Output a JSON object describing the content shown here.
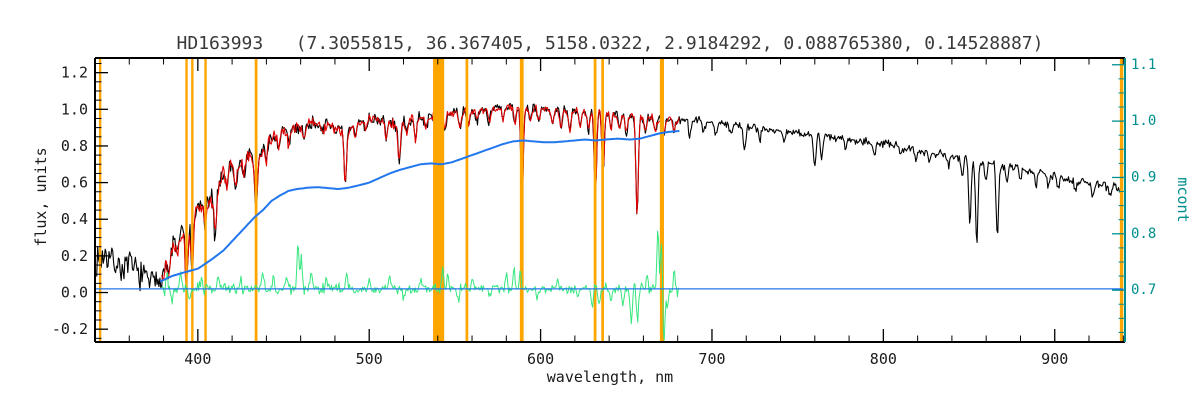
{
  "chart_data": {
    "type": "line",
    "title": "HD163993   (7.3055815, 36.367405, 5158.0322, 2.9184292, 0.088765380, 0.14528887)",
    "xlabel": "wavelength, nm",
    "ylabel_left": "flux, units",
    "ylabel_right": "mcont",
    "xlim": [
      340,
      941
    ],
    "ylim_left": [
      -0.27,
      1.28
    ],
    "ylim_right": [
      0.608,
      1.112
    ],
    "x_ticks": [
      400,
      500,
      600,
      700,
      800,
      900
    ],
    "x_minor_step": 20,
    "y_ticks_left": [
      -0.2,
      0.0,
      0.2,
      0.4,
      0.6,
      0.8,
      1.0,
      1.2
    ],
    "y_minor_step_left": 0.05,
    "y_ticks_right": [
      0.7,
      0.8,
      0.9,
      1.0,
      1.1
    ],
    "y_minor_step_right": 0.025,
    "grid": false,
    "legend": "none",
    "colors": {
      "axis": "#000000",
      "observed": "#000000",
      "fit": "#e10000",
      "residual": "#35e67d",
      "continuum": "#2277ee",
      "marker": "#ffa500",
      "right_axis": "#008e8e",
      "title_text": "#3a3a3a",
      "tick_text": "#1a1a1a"
    },
    "orange_marker_lines": [
      [
        343,
        1.4
      ],
      [
        393.4,
        1.4
      ],
      [
        396.8,
        1.4
      ],
      [
        404.5,
        1.4
      ],
      [
        434.0,
        1.6
      ],
      [
        540.5,
        6.5
      ],
      [
        557.0,
        1.6
      ],
      [
        589.0,
        2.2
      ],
      [
        631.8,
        1.6
      ],
      [
        636.2,
        1.6
      ],
      [
        670.8,
        2.4
      ],
      [
        939.0,
        2.0
      ]
    ],
    "observed_anchors": [
      [
        341,
        0.18
      ],
      [
        346,
        0.21
      ],
      [
        351,
        0.17
      ],
      [
        356,
        0.13
      ],
      [
        361,
        0.15
      ],
      [
        366,
        0.1
      ],
      [
        371,
        0.07
      ],
      [
        375,
        0.05
      ],
      [
        379,
        0.1
      ],
      [
        383,
        0.2
      ],
      [
        387,
        0.3
      ],
      [
        391,
        0.33
      ],
      [
        395,
        0.36
      ],
      [
        399,
        0.44
      ],
      [
        403,
        0.5
      ],
      [
        407,
        0.48
      ],
      [
        411,
        0.58
      ],
      [
        415,
        0.65
      ],
      [
        419,
        0.7
      ],
      [
        424,
        0.69
      ],
      [
        429,
        0.76
      ],
      [
        434,
        0.7
      ],
      [
        439,
        0.81
      ],
      [
        444,
        0.85
      ],
      [
        450,
        0.88
      ],
      [
        457,
        0.9
      ],
      [
        464,
        0.92
      ],
      [
        471,
        0.93
      ],
      [
        478,
        0.91
      ],
      [
        486,
        0.86
      ],
      [
        493,
        0.93
      ],
      [
        500,
        0.95
      ],
      [
        508,
        0.94
      ],
      [
        517,
        0.91
      ],
      [
        524,
        0.95
      ],
      [
        532,
        0.96
      ],
      [
        540,
        0.965
      ],
      [
        548,
        0.975
      ],
      [
        556,
        0.985
      ],
      [
        565,
        0.995
      ],
      [
        575,
        1.005
      ],
      [
        585,
        1.015
      ],
      [
        595,
        1.005
      ],
      [
        605,
        1.0
      ],
      [
        615,
        0.995
      ],
      [
        625,
        0.99
      ],
      [
        635,
        0.985
      ],
      [
        645,
        0.975
      ],
      [
        655,
        0.965
      ],
      [
        665,
        0.955
      ],
      [
        675,
        0.95
      ],
      [
        685,
        0.945
      ],
      [
        700,
        0.93
      ],
      [
        715,
        0.915
      ],
      [
        730,
        0.895
      ],
      [
        745,
        0.875
      ],
      [
        760,
        0.86
      ],
      [
        775,
        0.845
      ],
      [
        790,
        0.825
      ],
      [
        805,
        0.805
      ],
      [
        820,
        0.78
      ],
      [
        835,
        0.755
      ],
      [
        848,
        0.735
      ],
      [
        860,
        0.71
      ],
      [
        875,
        0.685
      ],
      [
        890,
        0.655
      ],
      [
        905,
        0.625
      ],
      [
        920,
        0.595
      ],
      [
        935,
        0.57
      ],
      [
        941,
        0.56
      ]
    ],
    "absorption_lines": [
      [
        383,
        0.12
      ],
      [
        388,
        0.1
      ],
      [
        393.4,
        0.33
      ],
      [
        396.8,
        0.29
      ],
      [
        404,
        0.13
      ],
      [
        410.2,
        0.26
      ],
      [
        417,
        0.1
      ],
      [
        422,
        0.13
      ],
      [
        427,
        0.1
      ],
      [
        434,
        0.27
      ],
      [
        440,
        0.1
      ],
      [
        447,
        0.08
      ],
      [
        453,
        0.09
      ],
      [
        462,
        0.08
      ],
      [
        473,
        0.07
      ],
      [
        486.1,
        0.28
      ],
      [
        492,
        0.07
      ],
      [
        498,
        0.06
      ],
      [
        510,
        0.08
      ],
      [
        517.5,
        0.2
      ],
      [
        522,
        0.08
      ],
      [
        527,
        0.12
      ],
      [
        533,
        0.07
      ],
      [
        544,
        0.08
      ],
      [
        553,
        0.09
      ],
      [
        558,
        0.07
      ],
      [
        563,
        0.06
      ],
      [
        570,
        0.07
      ],
      [
        578,
        0.06
      ],
      [
        585,
        0.1
      ],
      [
        589.2,
        0.5
      ],
      [
        594,
        0.07
      ],
      [
        599,
        0.06
      ],
      [
        607,
        0.08
      ],
      [
        612,
        0.1
      ],
      [
        617,
        0.12
      ],
      [
        623,
        0.08
      ],
      [
        628,
        0.1
      ],
      [
        632,
        0.45
      ],
      [
        636.5,
        0.33
      ],
      [
        641,
        0.08
      ],
      [
        646,
        0.08
      ],
      [
        650,
        0.1
      ],
      [
        656.3,
        0.55
      ],
      [
        661,
        0.07
      ],
      [
        667,
        0.08
      ],
      [
        672,
        0.09
      ],
      [
        678,
        0.07
      ],
      [
        687,
        0.1
      ],
      [
        695,
        0.06
      ],
      [
        702,
        0.07
      ],
      [
        711,
        0.06
      ],
      [
        719,
        0.12
      ],
      [
        728,
        0.06
      ],
      [
        742,
        0.06
      ],
      [
        760,
        0.18
      ],
      [
        764,
        0.12
      ],
      [
        778,
        0.05
      ],
      [
        795,
        0.06
      ],
      [
        810,
        0.05
      ],
      [
        819,
        0.07
      ],
      [
        827,
        0.05
      ],
      [
        838,
        0.06
      ],
      [
        846,
        0.1
      ],
      [
        850.5,
        0.34
      ],
      [
        854.5,
        0.45
      ],
      [
        860,
        0.1
      ],
      [
        866.5,
        0.4
      ],
      [
        872,
        0.08
      ],
      [
        880,
        0.06
      ],
      [
        889,
        0.07
      ],
      [
        896,
        0.06
      ],
      [
        902,
        0.07
      ],
      [
        912,
        0.05
      ],
      [
        922,
        0.06
      ],
      [
        932,
        0.05
      ]
    ],
    "series": [
      {
        "name": "observed-spectrum",
        "layer": 1,
        "color": "#000000",
        "stroke": 1.1,
        "seed": 7,
        "range": [
          341,
          938.5
        ],
        "step": 0.55,
        "anchors": "observed_anchors",
        "noise": [
          [
            341,
            0.1
          ],
          [
            370,
            0.09
          ],
          [
            385,
            0.07
          ],
          [
            400,
            0.075
          ],
          [
            430,
            0.055
          ],
          [
            460,
            0.05
          ],
          [
            500,
            0.042
          ],
          [
            550,
            0.038
          ],
          [
            600,
            0.032
          ],
          [
            650,
            0.03
          ],
          [
            700,
            0.03
          ],
          [
            750,
            0.028
          ],
          [
            800,
            0.028
          ],
          [
            850,
            0.032
          ],
          [
            900,
            0.03
          ],
          [
            941,
            0.032
          ]
        ],
        "dips": "absorption_lines"
      },
      {
        "name": "fitted-spectrum",
        "layer": 1,
        "color": "#e10000",
        "stroke": 1.1,
        "seed": 13,
        "range": [
          379,
          681
        ],
        "step": 0.55,
        "anchors": "observed_anchors",
        "noise": [
          [
            379,
            0.055
          ],
          [
            400,
            0.055
          ],
          [
            430,
            0.042
          ],
          [
            460,
            0.038
          ],
          [
            500,
            0.033
          ],
          [
            550,
            0.028
          ],
          [
            600,
            0.025
          ],
          [
            650,
            0.024
          ],
          [
            681,
            0.026
          ]
        ],
        "dips": "absorption_lines"
      },
      {
        "name": "residual",
        "layer": 2,
        "color": "#35e67d",
        "stroke": 1,
        "seed": 99,
        "range": [
          379,
          681
        ],
        "step": 0.55,
        "anchors": [
          [
            379,
            0.02
          ],
          [
            681,
            0.02
          ]
        ],
        "noise": [
          [
            379,
            0.05
          ],
          [
            400,
            0.04
          ],
          [
            420,
            0.032
          ],
          [
            440,
            0.045
          ],
          [
            470,
            0.038
          ],
          [
            500,
            0.032
          ],
          [
            530,
            0.032
          ],
          [
            560,
            0.03
          ],
          [
            590,
            0.032
          ],
          [
            620,
            0.032
          ],
          [
            650,
            0.038
          ],
          [
            681,
            0.045
          ]
        ],
        "spikes": [
          [
            382,
            0.1
          ],
          [
            385,
            -0.09
          ],
          [
            390,
            0.08
          ],
          [
            395,
            -0.07
          ],
          [
            402,
            0.06
          ],
          [
            412,
            0.07
          ],
          [
            425,
            0.06
          ],
          [
            438,
            0.09
          ],
          [
            444,
            0.07
          ],
          [
            452,
            0.08
          ],
          [
            458.5,
            0.24
          ],
          [
            460.5,
            0.17
          ],
          [
            466,
            0.08
          ],
          [
            475,
            0.06
          ],
          [
            487,
            0.07
          ],
          [
            500,
            0.05
          ],
          [
            512,
            0.06
          ],
          [
            520,
            -0.06
          ],
          [
            530,
            0.05
          ],
          [
            543,
            0.13
          ],
          [
            546,
            0.1
          ],
          [
            552,
            -0.06
          ],
          [
            560,
            0.05
          ],
          [
            570,
            -0.05
          ],
          [
            580,
            0.08
          ],
          [
            584.5,
            0.11
          ],
          [
            588,
            0.09
          ],
          [
            598,
            -0.05
          ],
          [
            610,
            0.05
          ],
          [
            622,
            -0.06
          ],
          [
            630,
            -0.1
          ],
          [
            634,
            -0.09
          ],
          [
            641,
            -0.07
          ],
          [
            648,
            -0.08
          ],
          [
            653,
            -0.22
          ],
          [
            656.5,
            -0.18
          ],
          [
            662,
            0.08
          ],
          [
            668.5,
            0.32
          ],
          [
            670.5,
            0.26
          ],
          [
            672,
            -0.3
          ],
          [
            674,
            -0.12
          ],
          [
            678,
            0.08
          ]
        ]
      },
      {
        "name": "zero-line",
        "layer": 2,
        "color": "#2277ee",
        "stroke": 1.2,
        "seed": 1,
        "range": [
          340,
          941
        ],
        "step": 50,
        "anchors": [
          [
            340,
            0.02
          ],
          [
            941,
            0.02
          ]
        ]
      },
      {
        "name": "continuum-mcont",
        "layer": 2,
        "color": "#2277ee",
        "stroke": 2,
        "seed": 1,
        "range": [
          378,
          681
        ],
        "step": 1,
        "anchors": [
          [
            378,
            0.06
          ],
          [
            385,
            0.09
          ],
          [
            392,
            0.11
          ],
          [
            400,
            0.13
          ],
          [
            408,
            0.18
          ],
          [
            415,
            0.23
          ],
          [
            422,
            0.3
          ],
          [
            428,
            0.36
          ],
          [
            433,
            0.41
          ],
          [
            438,
            0.45
          ],
          [
            443,
            0.5
          ],
          [
            448,
            0.53
          ],
          [
            453,
            0.555
          ],
          [
            458,
            0.565
          ],
          [
            464,
            0.572
          ],
          [
            470,
            0.575
          ],
          [
            476,
            0.57
          ],
          [
            482,
            0.565
          ],
          [
            488,
            0.572
          ],
          [
            494,
            0.585
          ],
          [
            500,
            0.6
          ],
          [
            506,
            0.625
          ],
          [
            512,
            0.65
          ],
          [
            518,
            0.67
          ],
          [
            524,
            0.685
          ],
          [
            530,
            0.7
          ],
          [
            536,
            0.705
          ],
          [
            542,
            0.7
          ],
          [
            548,
            0.71
          ],
          [
            554,
            0.73
          ],
          [
            560,
            0.75
          ],
          [
            566,
            0.77
          ],
          [
            572,
            0.79
          ],
          [
            578,
            0.81
          ],
          [
            584,
            0.825
          ],
          [
            590,
            0.83
          ],
          [
            596,
            0.825
          ],
          [
            602,
            0.82
          ],
          [
            608,
            0.82
          ],
          [
            614,
            0.825
          ],
          [
            620,
            0.83
          ],
          [
            626,
            0.835
          ],
          [
            632,
            0.83
          ],
          [
            638,
            0.835
          ],
          [
            645,
            0.84
          ],
          [
            652,
            0.835
          ],
          [
            658,
            0.84
          ],
          [
            664,
            0.855
          ],
          [
            670,
            0.87
          ],
          [
            676,
            0.878
          ],
          [
            681,
            0.882
          ]
        ]
      }
    ]
  }
}
